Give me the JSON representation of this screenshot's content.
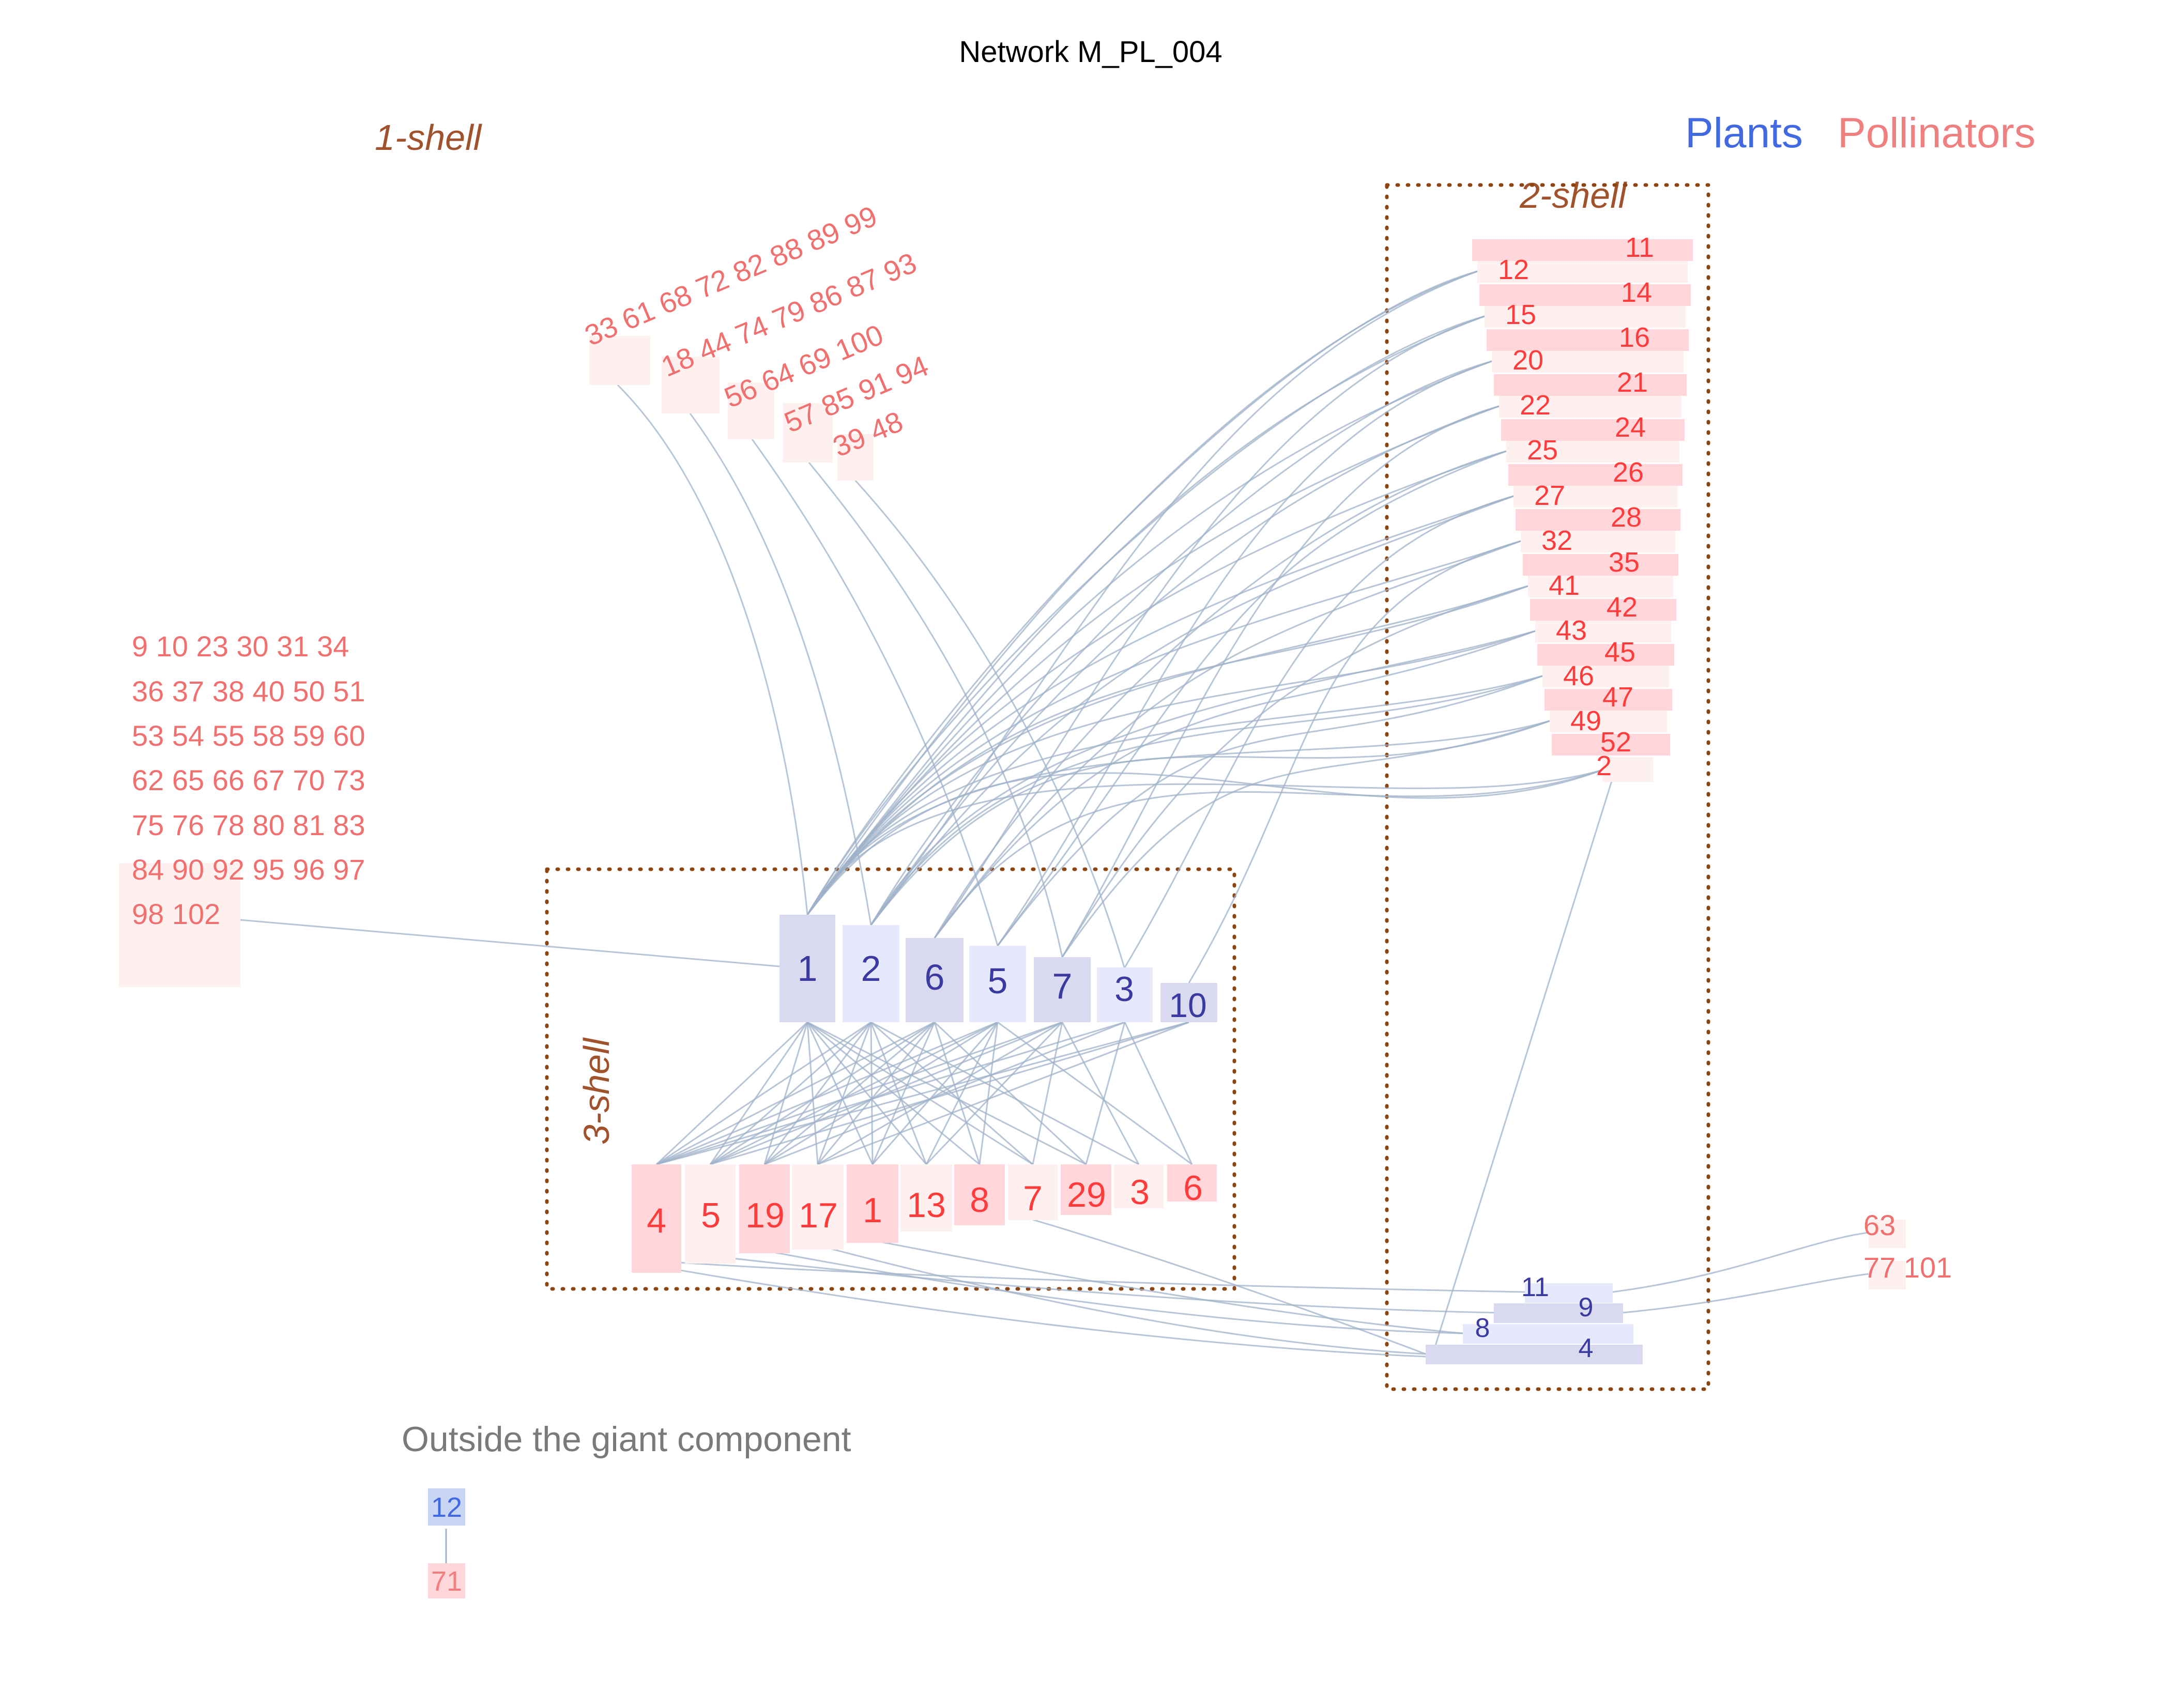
{
  "title": "Network M_PL_004",
  "legend": {
    "plants": "Plants",
    "pollinators": "Pollinators"
  },
  "shells": {
    "one": "1-shell",
    "two": "2-shell",
    "three": "3-shell"
  },
  "outside_title": "Outside the giant component",
  "colors": {
    "plant_dark": "#d9d9ef",
    "plant_light": "#e6e9fb",
    "poll_strong": "#ffd6d9",
    "poll_light": "#fff0f0",
    "link": "#9fb2c8",
    "shell_border": "#8B4513"
  },
  "nodes": {
    "core_plants": [
      "1",
      "2",
      "6",
      "5",
      "7",
      "3",
      "10"
    ],
    "core_pollinators": [
      "4",
      "5",
      "19",
      "17",
      "1",
      "13",
      "8",
      "7",
      "29",
      "3",
      "6"
    ],
    "shell2_pollinators_left": [
      "12",
      "15",
      "20",
      "22",
      "25",
      "27",
      "32",
      "41",
      "43",
      "46",
      "49",
      "2"
    ],
    "shell2_pollinators_right": [
      "11",
      "14",
      "16",
      "21",
      "24",
      "26",
      "28",
      "35",
      "42",
      "45",
      "47",
      "52"
    ],
    "shell2_plants": [
      "11",
      "9",
      "8",
      "4"
    ],
    "shell1_fan_rows": [
      "33 61 68 72 82 88  89 99",
      "18 44 74 79 86 87  93",
      "56 64  69 100",
      "57 85  91 94",
      "39  48"
    ],
    "shell1_block_rows": [
      "9 10 23 30 31 34",
      "36 37 38 40 50 51",
      "53 54 55 58 59 60",
      "62 65 66 67 70 73",
      "75 76 78 80 81 83",
      "84 90 92 95 96 97",
      "98 102"
    ],
    "shell1_right": [
      "63",
      "77  101"
    ],
    "outside_plant": "12",
    "outside_pollinator": "71"
  }
}
